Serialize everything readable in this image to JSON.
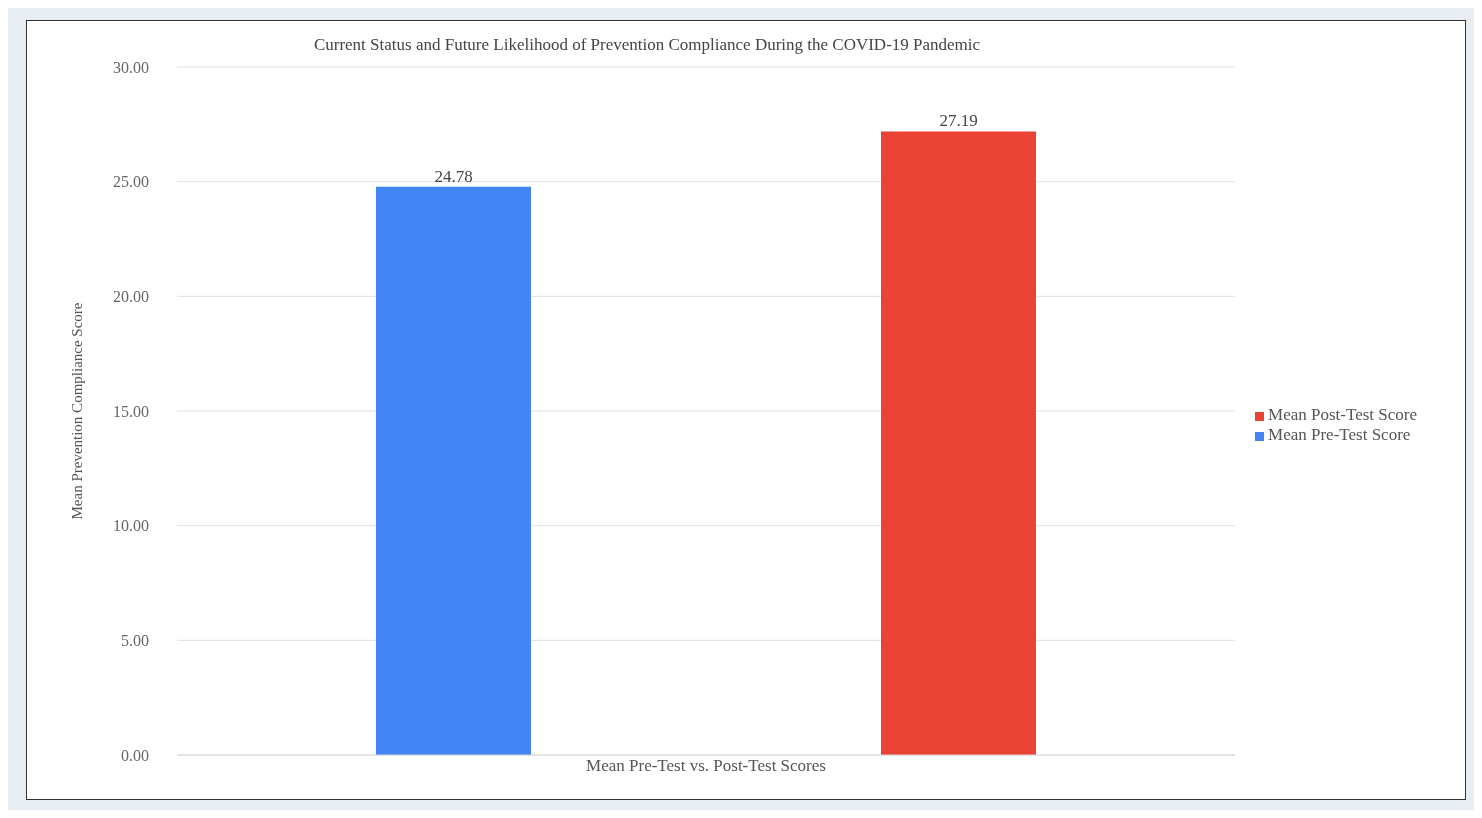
{
  "chart_data": {
    "type": "bar",
    "title": "Current Status and Future Likelihood of Prevention Compliance During the COVID-19 Pandemic",
    "xlabel": "Mean Pre-Test vs. Post-Test Scores",
    "ylabel": "Mean Prevention Compliance Score",
    "categories": [
      null
    ],
    "series": [
      {
        "name": "Mean Pre-Test Score",
        "color": "#4285f4",
        "values": [
          24.78
        ]
      },
      {
        "name": "Mean Post-Test Score",
        "color": "#ea4335",
        "values": [
          27.19
        ]
      }
    ],
    "ylim": [
      0,
      30
    ],
    "yticks": [
      {
        "value": 0,
        "label": "0.00"
      },
      {
        "value": 5,
        "label": "5.00"
      },
      {
        "value": 10,
        "label": "10.00"
      },
      {
        "value": 15,
        "label": "15.00"
      },
      {
        "value": 20,
        "label": "20.00"
      },
      {
        "value": 25,
        "label": "25.00"
      },
      {
        "value": 30,
        "label": "30.00"
      }
    ],
    "grid": "y",
    "legend": "right",
    "data_labels": true
  }
}
